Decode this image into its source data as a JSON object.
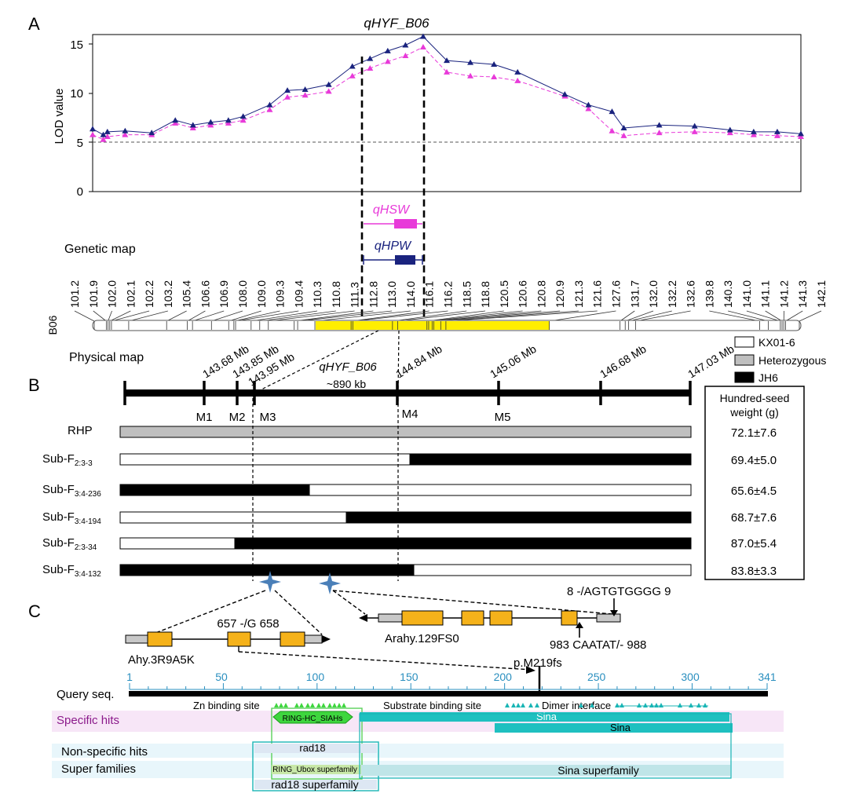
{
  "panels": {
    "a": "A",
    "b": "B",
    "c": "C"
  },
  "lod": {
    "title": "qHYF_B06",
    "ylabel": "LOD value",
    "yticks": [
      "0",
      "5",
      "10",
      "15"
    ],
    "threshold": 5,
    "ymax": 16.3,
    "qtl_hsw": "qHSW",
    "qtl_hpw": "qHPW",
    "hpw_color": "#1a237e",
    "hsw_color": "#e83ad9"
  },
  "chart_data": [
    {
      "type": "line",
      "title": "qHYF_B06",
      "ylabel": "LOD value",
      "ylim": [
        0,
        16.3
      ],
      "x_positions_cM": [
        101.2,
        101.9,
        102.0,
        102.1,
        102.2,
        103.2,
        105.4,
        106.6,
        106.9,
        108.0,
        109.0,
        109.3,
        109.4,
        110.3,
        110.8,
        111.3,
        112.8,
        113.0,
        114.0,
        116.1,
        116.2,
        118.5,
        118.8,
        120.5,
        120.6,
        120.8,
        120.9,
        121.3,
        121.6,
        127.6,
        131.7,
        132.0,
        132.2,
        132.6,
        139.8,
        140.3,
        141.0,
        141.1,
        141.2,
        141.3,
        142.1
      ],
      "series": [
        {
          "name": "qHPW",
          "color": "#1a237e",
          "marker": "triangle",
          "points": [
            [
              0,
              6.5
            ],
            [
              18,
              5.9
            ],
            [
              25,
              6.2
            ],
            [
              55,
              6.3
            ],
            [
              100,
              6.1
            ],
            [
              140,
              7.4
            ],
            [
              170,
              6.9
            ],
            [
              200,
              7.2
            ],
            [
              230,
              7.4
            ],
            [
              255,
              7.8
            ],
            [
              300,
              9.0
            ],
            [
              330,
              10.5
            ],
            [
              360,
              10.6
            ],
            [
              400,
              11.1
            ],
            [
              440,
              13.0
            ],
            [
              470,
              13.8
            ],
            [
              500,
              14.6
            ],
            [
              530,
              15.2
            ],
            [
              560,
              16.1
            ],
            [
              600,
              13.6
            ],
            [
              640,
              13.4
            ],
            [
              680,
              13.2
            ],
            [
              720,
              12.4
            ],
            [
              800,
              10.1
            ],
            [
              840,
              9.0
            ],
            [
              880,
              8.3
            ],
            [
              900,
              6.6
            ],
            [
              960,
              6.9
            ],
            [
              1020,
              6.8
            ],
            [
              1080,
              6.4
            ],
            [
              1120,
              6.2
            ],
            [
              1160,
              6.2
            ],
            [
              1200,
              6.0
            ]
          ]
        },
        {
          "name": "qHSW",
          "color": "#e83ad9",
          "marker": "triangle",
          "points": [
            [
              0,
              5.9
            ],
            [
              18,
              5.4
            ],
            [
              25,
              5.7
            ],
            [
              55,
              5.9
            ],
            [
              100,
              5.9
            ],
            [
              140,
              7.1
            ],
            [
              170,
              6.6
            ],
            [
              200,
              6.9
            ],
            [
              230,
              7.1
            ],
            [
              255,
              7.4
            ],
            [
              300,
              8.5
            ],
            [
              330,
              9.8
            ],
            [
              360,
              10.0
            ],
            [
              400,
              10.4
            ],
            [
              440,
              12.0
            ],
            [
              470,
              12.8
            ],
            [
              500,
              13.5
            ],
            [
              530,
              14.1
            ],
            [
              560,
              15.0
            ],
            [
              600,
              12.4
            ],
            [
              640,
              12.0
            ],
            [
              680,
              11.9
            ],
            [
              720,
              11.5
            ],
            [
              800,
              9.9
            ],
            [
              840,
              8.6
            ],
            [
              880,
              6.3
            ],
            [
              900,
              5.8
            ],
            [
              960,
              6.1
            ],
            [
              1020,
              6.2
            ],
            [
              1080,
              6.1
            ],
            [
              1120,
              5.9
            ],
            [
              1160,
              5.8
            ],
            [
              1200,
              5.7
            ]
          ]
        }
      ]
    }
  ],
  "genetic_map": {
    "label": "Genetic map",
    "chrom": "B06",
    "markers": [
      "101.2",
      "101.9",
      "102.0",
      "102.1",
      "102.2",
      "103.2",
      "105.4",
      "106.6",
      "106.9",
      "108.0",
      "109.0",
      "109.3",
      "109.4",
      "110.3",
      "110.8",
      "111.3",
      "112.8",
      "113.0",
      "114.0",
      "116.1",
      "116.2",
      "118.5",
      "118.8",
      "120.5",
      "120.6",
      "120.8",
      "120.9",
      "121.3",
      "121.6",
      "127.6",
      "131.7",
      "132.0",
      "132.2",
      "132.6",
      "139.8",
      "140.3",
      "141.0",
      "141.1",
      "141.2",
      "141.3",
      "142.1"
    ],
    "highlight_color": "#ffee00"
  },
  "physical_map": {
    "label": "Physical map",
    "interval_name": "qHYF_B06",
    "interval_size": "~890 kb",
    "positions": [
      "143.68 Mb",
      "143.85 Mb",
      "143.95 Mb",
      "144.84 Mb",
      "145.06 Mb",
      "146.68 Mb",
      "147.03 Mb"
    ],
    "markers": [
      "M1",
      "M2",
      "M3",
      "M4",
      "M5"
    ]
  },
  "legend": [
    {
      "label": "KX01-6",
      "color": "#ffffff"
    },
    {
      "label": "Heterozygous",
      "color": "#bfbfbf"
    },
    {
      "label": "JH6",
      "color": "#000000"
    }
  ],
  "hsw_header": [
    "Hundred-seed",
    "weight (g)"
  ],
  "lines": [
    {
      "name": "RHP",
      "sub": "",
      "value": "72.1±7.6"
    },
    {
      "name": "Sub-F",
      "sub": "2:3-3",
      "value": "69.4±5.0"
    },
    {
      "name": "Sub-F",
      "sub": "3:4-236",
      "value": "65.6±4.5"
    },
    {
      "name": "Sub-F",
      "sub": "3:4-194",
      "value": "68.7±7.6"
    },
    {
      "name": "Sub-F",
      "sub": "2:3-34",
      "value": "87.0±5.4"
    },
    {
      "name": "Sub-F",
      "sub": "3:4-132",
      "value": "83.8±3.3"
    }
  ],
  "genes": {
    "left": "Ahy.3R9A5K",
    "right": "Arahy.129FS0",
    "left_mut": "657 -/G 658",
    "right_mut_top": "8 -/AGTGTGGGG 9",
    "right_mut_bottom": "983 CAATAT/- 988",
    "frameshift": "p.M219fs",
    "exon_color": "#f5b21a"
  },
  "domain_track": {
    "query": "Query seq.",
    "ticks": [
      "1",
      "50",
      "100",
      "150",
      "200",
      "250",
      "300",
      "341"
    ],
    "tick_color": "#2a8fbf",
    "rows": [
      "Specific hits",
      "Non-specific hits",
      "Super families"
    ],
    "sites": [
      "Zn binding site",
      "Substrate binding site",
      "Dimer interface"
    ],
    "ring": "RING-HC_SIAHs",
    "sina": "Sina",
    "rad18": "rad18",
    "ring_super": "RING_Ubox superfamily",
    "sina_super": "Sina superfamily",
    "rad18_super": "rad18 superfamily",
    "row_label_color": "#8b1a8b"
  }
}
